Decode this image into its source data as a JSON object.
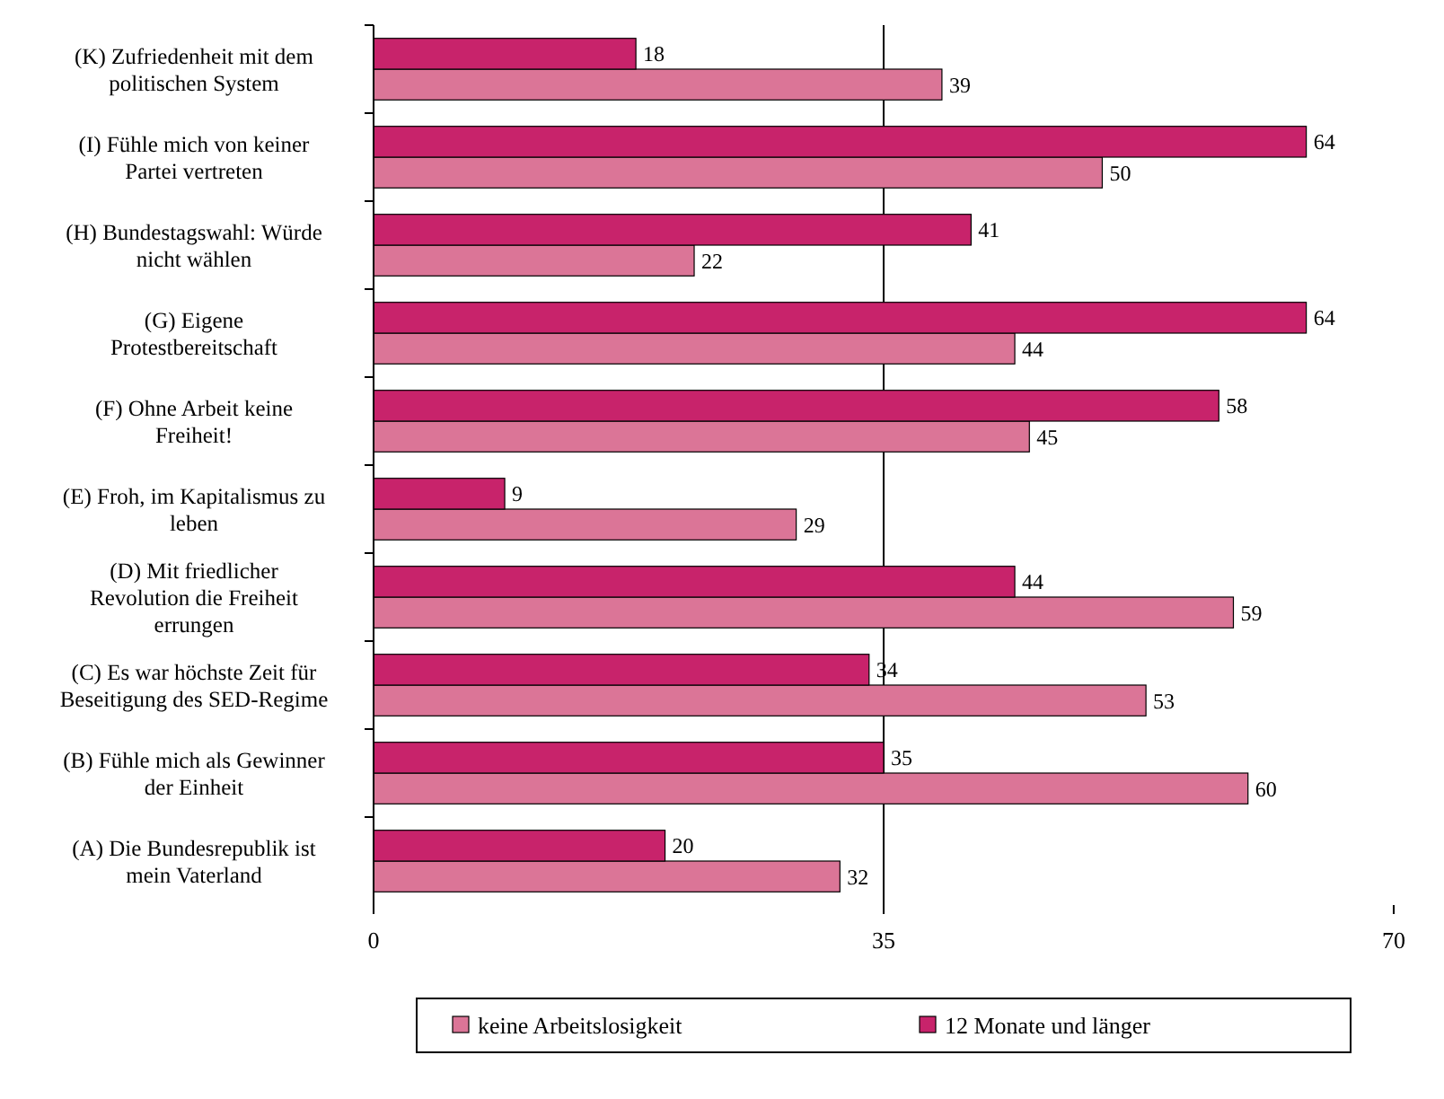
{
  "chart_data": {
    "type": "bar",
    "orientation": "horizontal",
    "categories": [
      "(K) Zufriedenheit mit dem politischen System",
      "(I) Fühle mich von keiner Partei vertreten",
      "(H) Bundestagswahl: Würde nicht wählen",
      "(G) Eigene Protestbereitschaft",
      "(F) Ohne Arbeit keine Freiheit!",
      "(E) Froh, im Kapitalismus zu leben",
      "(D) Mit friedlicher Revolution die Freiheit errungen",
      "(C) Es war höchste Zeit für Beseitigung des SED-Regime",
      "(B) Fühle mich als Gewinner der Einheit",
      "(A) Die Bundesrepublik ist mein Vaterland"
    ],
    "series": [
      {
        "name": "keine Arbeitslosigkeit",
        "color": "#db7597",
        "values": [
          39,
          50,
          22,
          44,
          45,
          29,
          59,
          53,
          60,
          32
        ]
      },
      {
        "name": "12 Monate und länger",
        "color": "#c8236b",
        "values": [
          18,
          64,
          41,
          64,
          58,
          9,
          44,
          34,
          35,
          20
        ]
      }
    ],
    "xlim": [
      0,
      70
    ],
    "xticks": [
      0,
      35,
      70
    ],
    "ref_lines": [
      {
        "axis": "x",
        "value": 35
      }
    ],
    "data_labels": true,
    "legend": "bottom"
  }
}
